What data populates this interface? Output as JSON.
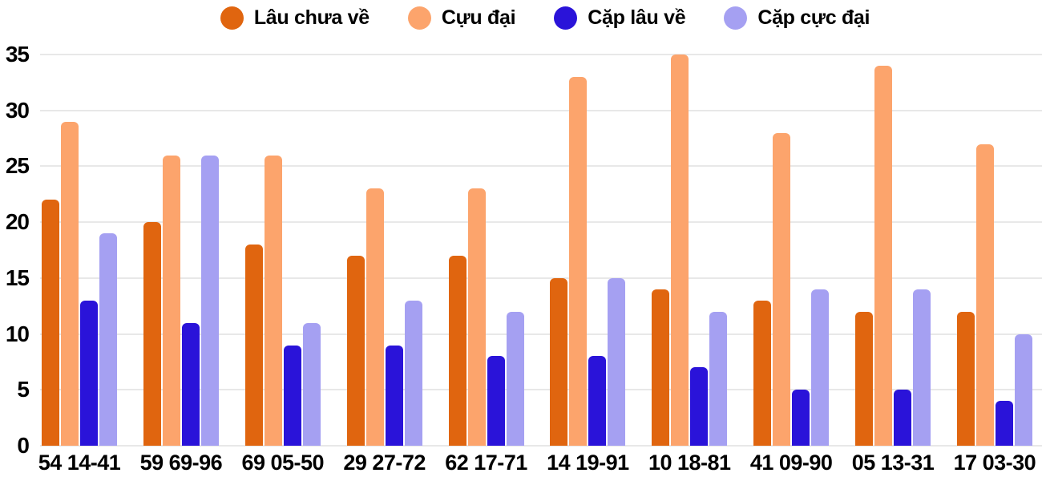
{
  "colors": {
    "background": "#ffffff",
    "gridline": "#e8e8e8",
    "text": "#000000"
  },
  "chart_data": {
    "type": "bar",
    "title": "",
    "xlabel": "",
    "ylabel": "",
    "legend_position": "top",
    "grid": true,
    "ylim": [
      0,
      35
    ],
    "y_ticks": [
      0,
      5,
      10,
      15,
      20,
      25,
      30,
      35
    ],
    "categories": [
      "54 14-41",
      "59 69-96",
      "69 05-50",
      "29 27-72",
      "62 17-71",
      "14 19-91",
      "10 18-81",
      "41 09-90",
      "05 13-31",
      "17 03-30"
    ],
    "series": [
      {
        "key": "lau-chua-ve",
        "name": "Lâu chưa về",
        "color": "#e0650f",
        "values": [
          22,
          20,
          18,
          17,
          17,
          15,
          14,
          13,
          12,
          12
        ]
      },
      {
        "key": "cuu-dai",
        "name": "Cựu đại",
        "color": "#fca46c",
        "values": [
          29,
          26,
          26,
          23,
          23,
          33,
          35,
          28,
          34,
          27
        ]
      },
      {
        "key": "cap-lau-ve",
        "name": "Cặp lâu về",
        "color": "#2a13d9",
        "values": [
          13,
          11,
          9,
          9,
          8,
          8,
          7,
          5,
          5,
          4
        ]
      },
      {
        "key": "cap-cuc-dai",
        "name": "Cặp cực đại",
        "color": "#a5a0f2",
        "values": [
          19,
          26,
          11,
          13,
          12,
          15,
          12,
          14,
          14,
          10
        ]
      }
    ]
  }
}
